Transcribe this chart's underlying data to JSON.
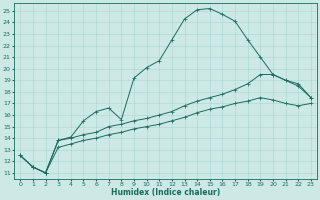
{
  "xlabel": "Humidex (Indice chaleur)",
  "background_color": "#cce9e6",
  "grid_color": "#aad4d0",
  "line_color": "#1a6b5a",
  "xlim": [
    -0.5,
    23.5
  ],
  "ylim": [
    10.5,
    25.7
  ],
  "xticks": [
    0,
    1,
    2,
    3,
    4,
    5,
    6,
    7,
    8,
    9,
    10,
    11,
    12,
    13,
    14,
    15,
    16,
    17,
    18,
    19,
    20,
    21,
    22,
    23
  ],
  "yticks": [
    11,
    12,
    13,
    14,
    15,
    16,
    17,
    18,
    19,
    20,
    21,
    22,
    23,
    24,
    25
  ],
  "line1_y": [
    12.5,
    11.5,
    11.0,
    13.8,
    14.1,
    15.5,
    16.3,
    16.6,
    15.6,
    19.2,
    20.1,
    20.7,
    22.5,
    24.3,
    25.1,
    25.2,
    24.7,
    24.1,
    22.5,
    21.0,
    19.5,
    19.0,
    18.7,
    17.5
  ],
  "line2_y": [
    12.5,
    11.5,
    11.0,
    13.8,
    14.0,
    14.3,
    14.5,
    15.0,
    15.2,
    15.5,
    15.7,
    16.0,
    16.3,
    16.8,
    17.2,
    17.5,
    17.8,
    18.2,
    18.7,
    19.5,
    19.5,
    19.0,
    18.5,
    17.5
  ],
  "line3_y": [
    12.5,
    11.5,
    11.0,
    13.2,
    13.5,
    13.8,
    14.0,
    14.3,
    14.5,
    14.8,
    15.0,
    15.2,
    15.5,
    15.8,
    16.2,
    16.5,
    16.7,
    17.0,
    17.2,
    17.5,
    17.3,
    17.0,
    16.8,
    17.0
  ]
}
